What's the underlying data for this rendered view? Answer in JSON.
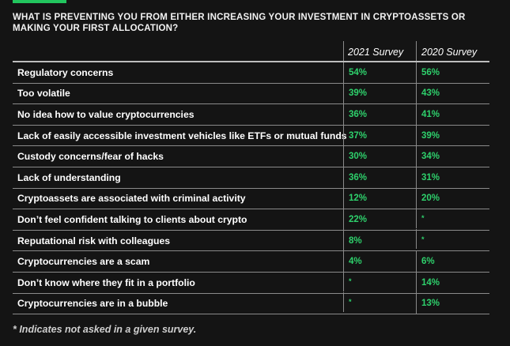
{
  "question": "WHAT IS PREVENTING YOU FROM EITHER INCREASING YOUR INVESTMENT IN CRYPTOASSETS OR MAKING YOUR FIRST ALLOCATION?",
  "colors": {
    "background": "#141414",
    "accent": "#22c55e",
    "value_text": "#2ed16c"
  },
  "table": {
    "columns": [
      "",
      "2021 Survey",
      "2020 Survey"
    ],
    "rows": [
      {
        "label": "Regulatory concerns",
        "y2021": "54%",
        "y2020": "56%"
      },
      {
        "label": "Too volatile",
        "y2021": "39%",
        "y2020": "43%"
      },
      {
        "label": "No idea how to value cryptocurrencies",
        "y2021": "36%",
        "y2020": "41%"
      },
      {
        "label": "Lack of easily accessible investment vehicles like ETFs or mutual funds",
        "y2021": "37%",
        "y2020": "39%"
      },
      {
        "label": "Custody concerns/fear of hacks",
        "y2021": "30%",
        "y2020": "34%"
      },
      {
        "label": "Lack of understanding",
        "y2021": "36%",
        "y2020": "31%"
      },
      {
        "label": "Cryptoassets are associated with criminal activity",
        "y2021": "12%",
        "y2020": "20%"
      },
      {
        "label": "Don’t feel confident talking to clients about crypto",
        "y2021": "22%",
        "y2020": "*"
      },
      {
        "label": "Reputational risk with colleagues",
        "y2021": "8%",
        "y2020": "*"
      },
      {
        "label": "Cryptocurrencies are a scam",
        "y2021": "4%",
        "y2020": "6%"
      },
      {
        "label": "Don’t know where they fit in a portfolio",
        "y2021": "*",
        "y2020": "14%"
      },
      {
        "label": "Cryptocurrencies are in a bubble",
        "y2021": "*",
        "y2020": "13%"
      }
    ]
  },
  "footnote": "* Indicates not asked in a given survey."
}
